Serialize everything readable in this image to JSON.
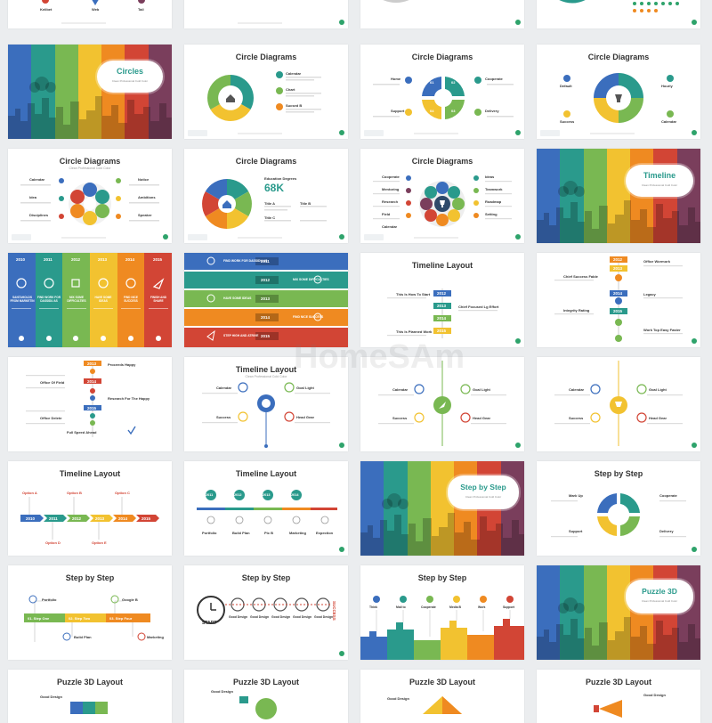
{
  "colors": {
    "blue": "#3b6ebd",
    "teal": "#2a9a8c",
    "green": "#79b852",
    "yellow": "#f2c230",
    "orange": "#ef8a21",
    "red": "#d24535",
    "plum": "#7a3e5c"
  },
  "watermark": {
    "text": "HomeSAm"
  },
  "row0": {
    "labels": [
      "Kelibet",
      "Web",
      "Tail"
    ]
  },
  "row1": {
    "cover": {
      "title": "Circles",
      "subtitle": "Clean Professional Cold Color"
    },
    "s2": {
      "title": "Circle Diagrams",
      "items": [
        "Calendar",
        "Chart",
        "Sucsed B"
      ]
    },
    "s3": {
      "title": "Circle Diagrams",
      "items": [
        "Home",
        "Support",
        "Cooperate",
        "Delivery"
      ],
      "nums": [
        "01",
        "02",
        "03",
        "04"
      ]
    },
    "s4": {
      "title": "Circle Diagrams",
      "items": [
        "Default",
        "Hourly",
        "Success",
        "Calendar"
      ]
    }
  },
  "row2": {
    "s1": {
      "title": "Circle Diagrams",
      "subtitle": "Clean Professional Cold Color",
      "items": [
        "Calendar",
        "Idea",
        "Disciplines",
        "Notice",
        "Ambitions",
        "Speaker"
      ]
    },
    "s2": {
      "title": "Circle Diagrams",
      "big": "68K",
      "caption": "Education Degrees",
      "items": [
        "Title A",
        "Title B",
        "Title C"
      ]
    },
    "s3": {
      "title": "Circle Diagrams",
      "items": [
        "Cooperate",
        "Mentoring",
        "Research",
        "Field",
        "Calendar",
        "Ideas",
        "Teamwork",
        "Roadmap",
        "Setting"
      ]
    },
    "cover": {
      "title": "Timeline",
      "subtitle": "Clean Professional Cold Color"
    }
  },
  "row3": {
    "s1": {
      "years": [
        "2010",
        "2011",
        "2012",
        "2013",
        "2014",
        "2015"
      ],
      "caps": [
        "SANTAHOLDS FROM MARKETIN",
        "FIND WORK FOR DASSIDU AS",
        "MIX SOME DIFFICULTIES",
        "HAVE SOME IDEAS",
        "FIND NICE SUCCESS",
        "FINISH AND SHARE"
      ]
    },
    "s2": {
      "rows": [
        "FIND WORK FOR DASSIDU AS",
        "HAVE SOME IDEAS",
        "STEP HIGH AND ATRIVE"
      ],
      "years": [
        "2011",
        "2012",
        "2013",
        "2014",
        "2015"
      ],
      "right": [
        "MIX SOME DIFFICULTIES",
        "FIND NICE SUCCESS"
      ]
    },
    "s3": {
      "title": "Timeline Layout",
      "items": [
        "This Is How To Start",
        "Chief Focused Lg Effort",
        "This Is Planned Work"
      ],
      "years": [
        "2012",
        "2013",
        "2014",
        "2015"
      ]
    },
    "s4": {
      "items": [
        "Office Wormork",
        "Chief Success Fable",
        "Legacy",
        "Integrity Rating",
        "Work Top Easy Faster"
      ],
      "years": [
        "2012",
        "2013",
        "2014",
        "2015"
      ]
    }
  },
  "row4": {
    "s1": {
      "items": [
        "Proceeds Happy",
        "Office Of Field",
        "Research For The Happy",
        "Office Delete",
        "Full Speed Ahead"
      ],
      "years": [
        "2013",
        "2014",
        "2015"
      ]
    },
    "s2": {
      "title": "Timeline Layout",
      "subtitle": "Clean Professional Cold Color",
      "items": [
        "Calendar",
        "Goal Light",
        "Success",
        "Head Gear"
      ]
    },
    "s3": {
      "items": [
        "Calendar",
        "Goal Light",
        "Success",
        "Head Gear"
      ]
    },
    "s4": {
      "items": [
        "Calendar",
        "Goal Light",
        "Success",
        "Head Gear"
      ]
    }
  },
  "row5": {
    "s1": {
      "title": "Timeline Layout",
      "years": [
        "2010",
        "2011",
        "2012",
        "2013",
        "2014",
        "2015"
      ],
      "items": [
        "Option A",
        "Option B",
        "Option C",
        "Option D",
        "Option E"
      ]
    },
    "s2": {
      "title": "Timeline Layout",
      "years": [
        "2011",
        "2012",
        "2013",
        "2014"
      ],
      "items": [
        "Portfolio",
        "Build Plan",
        "Pic B",
        "Marketing",
        "Expection"
      ]
    },
    "cover": {
      "title": "Step by Step",
      "subtitle": "Clean Professional Cold Color"
    },
    "s4": {
      "title": "Step by Step",
      "items": [
        "Mark Up",
        "Cooperate",
        "Support",
        "Delivery"
      ]
    }
  },
  "row6": {
    "s1": {
      "title": "Step by Step",
      "steps": [
        "Portfolio",
        "01. Step One",
        "02. Step Two",
        "03. Step Four",
        "Google B",
        "Build Plan",
        "Marketing"
      ]
    },
    "s2": {
      "title": "Step by Step",
      "start": "START",
      "success": "SUCCESS",
      "items": [
        "Good Design",
        "Good Design",
        "Good Design",
        "Good Design",
        "Good Design"
      ]
    },
    "s3": {
      "title": "Step by Step",
      "items": [
        "Think",
        "Mail to",
        "Cooperate",
        "Media B",
        "Work",
        "Support"
      ]
    },
    "cover": {
      "title": "Puzzle 3D",
      "subtitle": "Clean Professional Cold Color"
    }
  },
  "row7": {
    "titles": [
      "Puzzle 3D Layout",
      "Puzzle 3D Layout",
      "Puzzle 3D Layout",
      "Puzzle 3D Layout"
    ],
    "items": [
      "Good Design",
      "Good Design",
      "Good Design",
      "Good Design"
    ]
  }
}
